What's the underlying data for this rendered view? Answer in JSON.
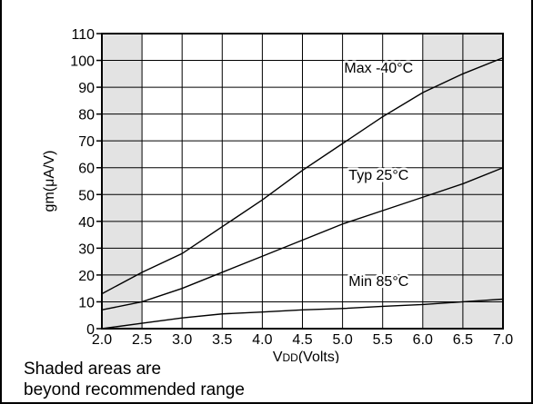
{
  "chart_data": {
    "type": "line",
    "xlabel": "VDD(Volts)",
    "xlabel_main": "V",
    "xlabel_sub": "DD",
    "xlabel_rest": "(Volts)",
    "ylabel": "gm(μA/V)",
    "xlim": [
      2.0,
      7.0
    ],
    "ylim": [
      0,
      110
    ],
    "x_ticks": [
      "2.0",
      "2.5",
      "3.0",
      "3.5",
      "4.0",
      "4.5",
      "5.0",
      "5.5",
      "6.0",
      "6.5",
      "7.0"
    ],
    "y_ticks": [
      "0",
      "10",
      "20",
      "30",
      "40",
      "50",
      "60",
      "70",
      "80",
      "90",
      "100",
      "110"
    ],
    "grid": true,
    "shaded_ranges": [
      [
        2.0,
        2.5
      ],
      [
        6.0,
        7.0
      ]
    ],
    "shade_color": "#e3e3e3",
    "series": [
      {
        "name": "Max -40°C",
        "x": [
          2.0,
          2.5,
          3.0,
          3.5,
          4.0,
          4.5,
          5.0,
          5.5,
          6.0,
          6.5,
          7.0
        ],
        "y": [
          13,
          21,
          28,
          38,
          48,
          59,
          69,
          79,
          88,
          95,
          101
        ]
      },
      {
        "name": "Typ 25°C",
        "x": [
          2.0,
          2.5,
          3.0,
          3.5,
          4.0,
          4.5,
          5.0,
          5.5,
          6.0,
          6.5,
          7.0
        ],
        "y": [
          7,
          10,
          15,
          21,
          27,
          33,
          39,
          44,
          49,
          54,
          60
        ]
      },
      {
        "name": "Min 85°C",
        "x": [
          2.0,
          2.5,
          3.0,
          3.5,
          4.0,
          4.5,
          5.0,
          5.5,
          6.0,
          6.5,
          7.0
        ],
        "y": [
          0,
          2,
          4,
          5.5,
          6.2,
          7,
          7.5,
          8.3,
          9,
          10,
          11
        ]
      }
    ]
  },
  "notes": {
    "line1": "Shaded areas are",
    "line2": "beyond recommended range"
  }
}
